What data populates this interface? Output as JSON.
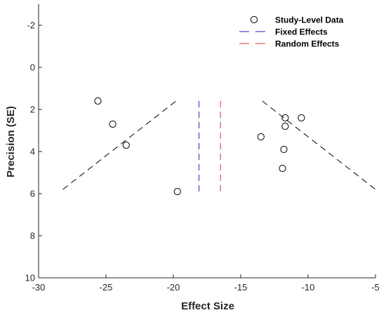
{
  "chart_data": {
    "type": "scatter",
    "title": "",
    "xlabel": "Effect Size",
    "ylabel": "Precision (SE)",
    "xlim": [
      -30,
      -5
    ],
    "ylim": [
      -3,
      10
    ],
    "y_reversed": true,
    "grid": false,
    "xticks": [
      {
        "value": -30,
        "label": "-30"
      },
      {
        "value": -25,
        "label": "-25"
      },
      {
        "value": -20,
        "label": "-20"
      },
      {
        "value": -15,
        "label": "-15"
      },
      {
        "value": -10,
        "label": "-10"
      },
      {
        "value": -5,
        "label": "-5"
      }
    ],
    "yticks": [
      {
        "value": -2,
        "label": "-2"
      },
      {
        "value": 0,
        "label": "0"
      },
      {
        "value": 2,
        "label": "2"
      },
      {
        "value": 4,
        "label": "4"
      },
      {
        "value": 6,
        "label": "6"
      },
      {
        "value": 8,
        "label": "8"
      },
      {
        "value": 10,
        "label": "10"
      }
    ],
    "legend_position": "top-right",
    "series": [
      {
        "name": "Study-Level Data",
        "kind": "scatter",
        "marker": "circle-open",
        "color": "#000000",
        "points": [
          {
            "x": -25.6,
            "y": 1.6
          },
          {
            "x": -24.5,
            "y": 2.7
          },
          {
            "x": -23.5,
            "y": 3.7
          },
          {
            "x": -19.7,
            "y": 5.9
          },
          {
            "x": -13.5,
            "y": 3.3
          },
          {
            "x": -11.7,
            "y": 2.4
          },
          {
            "x": -11.7,
            "y": 2.8
          },
          {
            "x": -10.5,
            "y": 2.4
          },
          {
            "x": -11.8,
            "y": 3.9
          },
          {
            "x": -11.9,
            "y": 4.8
          }
        ]
      },
      {
        "name": "Fixed Effects",
        "kind": "vline",
        "style": "dashed",
        "color": "#4b4bd8",
        "x": -18.1,
        "y_from": 1.6,
        "y_to": 5.9
      },
      {
        "name": "Random Effects",
        "kind": "vline",
        "style": "dashed",
        "color": "#e06060",
        "x": -16.5,
        "y_from": 1.6,
        "y_to": 5.9
      }
    ],
    "funnel_lines": [
      {
        "x1": -28.2,
        "y1": 5.8,
        "x2": -19.8,
        "y2": 1.6
      },
      {
        "x1": -13.4,
        "y1": 1.6,
        "x2": -5.0,
        "y2": 5.8
      }
    ],
    "funnel_color": "#000000"
  }
}
